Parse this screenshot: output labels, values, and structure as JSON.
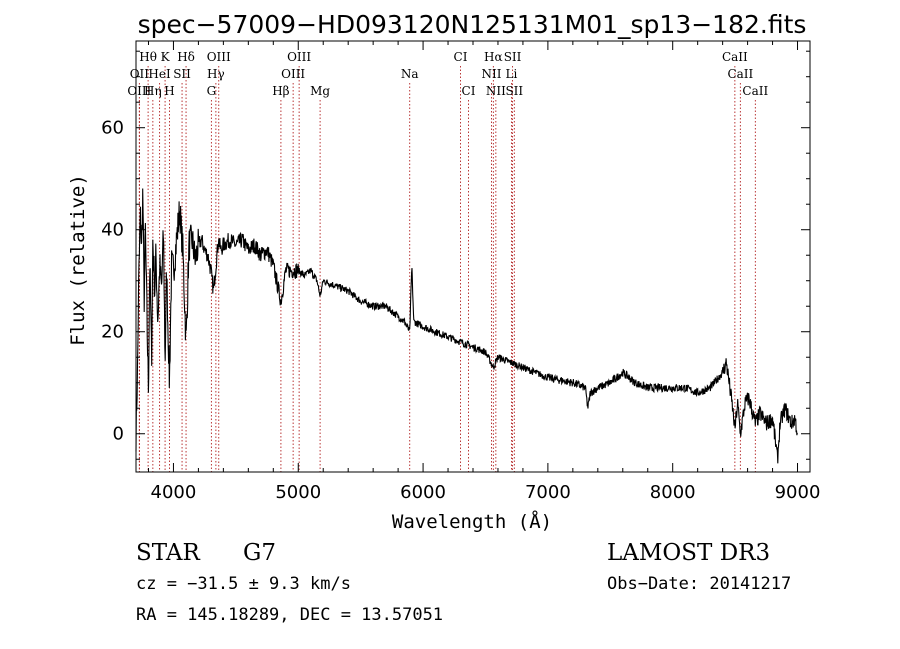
{
  "chart_data": {
    "type": "line",
    "title": "spec−57009−HD093120N125131M01_sp13−182.fits",
    "xlabel": "Wavelength (Å)",
    "ylabel": "Flux (relative)",
    "xlim": [
      3700,
      9100
    ],
    "ylim": [
      -7.5,
      77
    ],
    "xticks": [
      4000,
      5000,
      6000,
      7000,
      8000,
      9000
    ],
    "yticks": [
      0,
      20,
      40,
      60
    ],
    "spectrum_anchors": [
      [
        3700,
        0
      ],
      [
        3712,
        12
      ],
      [
        3722,
        30
      ],
      [
        3735,
        43
      ],
      [
        3745,
        36
      ],
      [
        3755,
        48
      ],
      [
        3765,
        25
      ],
      [
        3775,
        40
      ],
      [
        3790,
        20
      ],
      [
        3800,
        8
      ],
      [
        3810,
        35
      ],
      [
        3825,
        14
      ],
      [
        3835,
        38
      ],
      [
        3850,
        28
      ],
      [
        3860,
        35
      ],
      [
        3875,
        22
      ],
      [
        3890,
        33
      ],
      [
        3905,
        28
      ],
      [
        3920,
        40
      ],
      [
        3933,
        14
      ],
      [
        3945,
        32
      ],
      [
        3968,
        10
      ],
      [
        3985,
        33
      ],
      [
        4000,
        32
      ],
      [
        4025,
        38
      ],
      [
        4050,
        44
      ],
      [
        4075,
        36
      ],
      [
        4101,
        18
      ],
      [
        4125,
        37
      ],
      [
        4150,
        38
      ],
      [
        4175,
        34
      ],
      [
        4200,
        37
      ],
      [
        4225,
        38
      ],
      [
        4250,
        36
      ],
      [
        4275,
        35
      ],
      [
        4300,
        32
      ],
      [
        4320,
        28
      ],
      [
        4340,
        33
      ],
      [
        4360,
        38
      ],
      [
        4380,
        36
      ],
      [
        4400,
        37
      ],
      [
        4450,
        38
      ],
      [
        4500,
        37
      ],
      [
        4550,
        38
      ],
      [
        4600,
        36
      ],
      [
        4650,
        37
      ],
      [
        4700,
        35
      ],
      [
        4750,
        36
      ],
      [
        4800,
        33
      ],
      [
        4861,
        26
      ],
      [
        4900,
        32
      ],
      [
        4950,
        32
      ],
      [
        5000,
        32
      ],
      [
        5050,
        31
      ],
      [
        5100,
        32
      ],
      [
        5150,
        30
      ],
      [
        5175,
        27
      ],
      [
        5200,
        30
      ],
      [
        5300,
        29
      ],
      [
        5400,
        28
      ],
      [
        5500,
        26
      ],
      [
        5600,
        25
      ],
      [
        5700,
        25
      ],
      [
        5800,
        23
      ],
      [
        5850,
        22
      ],
      [
        5893,
        20
      ],
      [
        5910,
        33
      ],
      [
        5925,
        22
      ],
      [
        6000,
        21
      ],
      [
        6100,
        20
      ],
      [
        6200,
        19
      ],
      [
        6300,
        18
      ],
      [
        6400,
        17
      ],
      [
        6500,
        16
      ],
      [
        6563,
        13
      ],
      [
        6600,
        15
      ],
      [
        6700,
        14
      ],
      [
        6800,
        13
      ],
      [
        6900,
        12
      ],
      [
        7000,
        11
      ],
      [
        7100,
        10.5
      ],
      [
        7200,
        10
      ],
      [
        7300,
        9
      ],
      [
        7320,
        5
      ],
      [
        7340,
        8
      ],
      [
        7400,
        9
      ],
      [
        7500,
        10
      ],
      [
        7600,
        12
      ],
      [
        7700,
        10
      ],
      [
        7800,
        9
      ],
      [
        7900,
        9
      ],
      [
        8000,
        9
      ],
      [
        8100,
        9
      ],
      [
        8200,
        8
      ],
      [
        8300,
        9
      ],
      [
        8400,
        12
      ],
      [
        8430,
        14
      ],
      [
        8480,
        5
      ],
      [
        8498,
        1
      ],
      [
        8520,
        6
      ],
      [
        8542,
        0
      ],
      [
        8580,
        6
      ],
      [
        8610,
        7
      ],
      [
        8662,
        2
      ],
      [
        8700,
        4
      ],
      [
        8750,
        2
      ],
      [
        8800,
        3
      ],
      [
        8840,
        -5
      ],
      [
        8860,
        2
      ],
      [
        8900,
        5
      ],
      [
        8950,
        2
      ],
      [
        8980,
        3
      ],
      [
        9000,
        0
      ]
    ],
    "lines": [
      {
        "label": "Hθ",
        "wl": 3797,
        "row": 1
      },
      {
        "label": "K",
        "wl": 3933,
        "row": 1
      },
      {
        "label": "Hδ",
        "wl": 4101,
        "row": 1
      },
      {
        "label": "OIII",
        "wl": 4363,
        "row": 1
      },
      {
        "label": "OIII",
        "wl": 5007,
        "row": 1
      },
      {
        "label": "CI",
        "wl": 6300,
        "row": 1
      },
      {
        "label": "Hα",
        "wl": 6563,
        "row": 1
      },
      {
        "label": "SII",
        "wl": 6717,
        "row": 1
      },
      {
        "label": "CaII",
        "wl": 8498,
        "row": 1
      },
      {
        "label": "OII",
        "wl": 3727,
        "row": 2
      },
      {
        "label": "HeI",
        "wl": 3889,
        "row": 2
      },
      {
        "label": "SII",
        "wl": 4069,
        "row": 2
      },
      {
        "label": "Hγ",
        "wl": 4340,
        "row": 2
      },
      {
        "label": "OIII",
        "wl": 4959,
        "row": 2
      },
      {
        "label": "Na",
        "wl": 5893,
        "row": 2
      },
      {
        "label": "NII",
        "wl": 6548,
        "row": 2
      },
      {
        "label": "Li",
        "wl": 6708,
        "row": 2
      },
      {
        "label": "CaII",
        "wl": 8542,
        "row": 2
      },
      {
        "label": "OIII",
        "wl": 3727,
        "row": 3
      },
      {
        "label": "Hη",
        "wl": 3835,
        "row": 3
      },
      {
        "label": "H",
        "wl": 3968,
        "row": 3
      },
      {
        "label": "G",
        "wl": 4304,
        "row": 3
      },
      {
        "label": "Hβ",
        "wl": 4861,
        "row": 3
      },
      {
        "label": "Mg",
        "wl": 5175,
        "row": 3
      },
      {
        "label": "CI",
        "wl": 6364,
        "row": 3
      },
      {
        "label": "NII",
        "wl": 6583,
        "row": 3
      },
      {
        "label": "SII",
        "wl": 6731,
        "row": 3
      },
      {
        "label": "CaII",
        "wl": 8662,
        "row": 3
      }
    ]
  },
  "info": {
    "object_class": "STAR",
    "subclass": "G7",
    "survey": "LAMOST DR3",
    "cz": "cz = −31.5 ± 9.3 km/s",
    "obs_date": "Obs−Date: 20141217",
    "radec": "RA = 145.18289, DEC =  13.57051"
  },
  "colors": {
    "spectrum": "#000000",
    "line_markers": "#b22222",
    "text": "#000000",
    "background": "#ffffff"
  }
}
